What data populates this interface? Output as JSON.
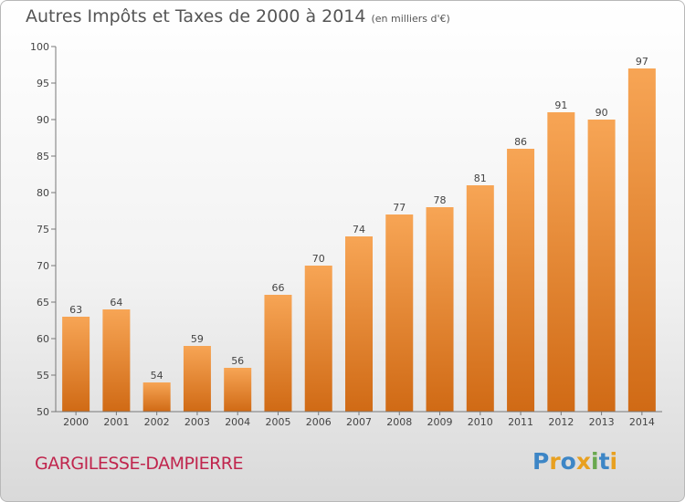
{
  "title": {
    "main": "Autres Impôts et Taxes de 2000 à 2014",
    "unit": "(en milliers d'€)"
  },
  "commune": "GARGILESSE-DAMPIERRE",
  "logo": {
    "text": "Proxiti",
    "letters": [
      {
        "ch": "P",
        "color": "#3d86c6"
      },
      {
        "ch": "r",
        "color": "#e8a020"
      },
      {
        "ch": "o",
        "color": "#3d86c6"
      },
      {
        "ch": "x",
        "color": "#e8a020"
      },
      {
        "ch": "i",
        "color": "#6aa84f"
      },
      {
        "ch": "t",
        "color": "#3d86c6"
      },
      {
        "ch": "i",
        "color": "#e8a020"
      }
    ]
  },
  "colors": {
    "bar_top": "#f7a555",
    "bar_bottom": "#d06a15",
    "commune": "#c0254d"
  },
  "chart_data": {
    "type": "bar",
    "categories": [
      "2000",
      "2001",
      "2002",
      "2003",
      "2004",
      "2005",
      "2006",
      "2007",
      "2008",
      "2009",
      "2010",
      "2011",
      "2012",
      "2013",
      "2014"
    ],
    "values": [
      63,
      64,
      54,
      59,
      56,
      66,
      70,
      74,
      77,
      78,
      81,
      86,
      91,
      90,
      97
    ],
    "title": "Autres Impôts et Taxes de 2000 à 2014",
    "ylabel": "",
    "xlabel": "",
    "ylim": [
      50,
      100
    ],
    "yticks": [
      50,
      55,
      60,
      65,
      70,
      75,
      80,
      85,
      90,
      95,
      100
    ],
    "grid": false
  }
}
